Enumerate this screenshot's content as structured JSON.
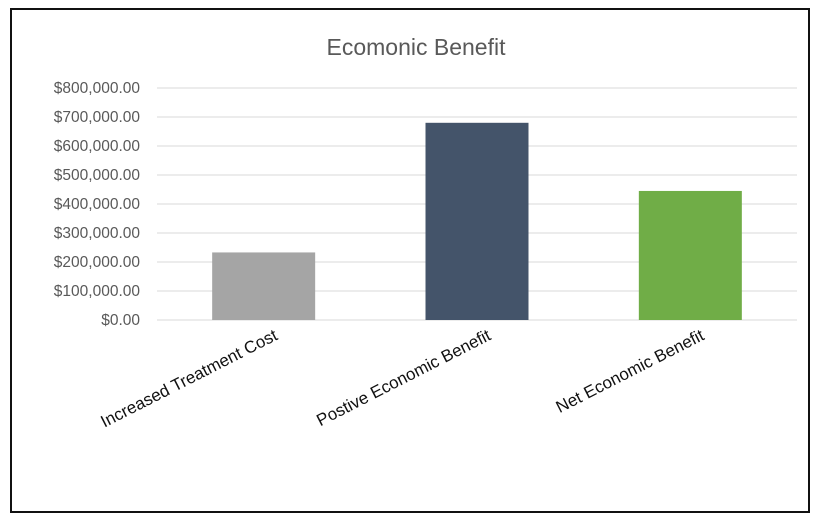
{
  "chart_data": {
    "type": "bar",
    "title": "Ecomonic Benefit",
    "xlabel": "",
    "ylabel": "",
    "categories": [
      "Increased Treatment Cost",
      "Postive Economic Benefit",
      "Net Economic Benefit"
    ],
    "values": [
      233000,
      680000,
      445000
    ],
    "colors": [
      "#a5a5a5",
      "#44546a",
      "#70ad47"
    ],
    "ylim": [
      0,
      800000
    ],
    "yticks": [
      0,
      100000,
      200000,
      300000,
      400000,
      500000,
      600000,
      700000,
      800000
    ],
    "ytick_labels": [
      "$0.00",
      "$100,000.00",
      "$200,000.00",
      "$300,000.00",
      "$400,000.00",
      "$500,000.00",
      "$600,000.00",
      "$700,000.00",
      "$800,000.00"
    ],
    "grid": true,
    "legend": "none"
  }
}
